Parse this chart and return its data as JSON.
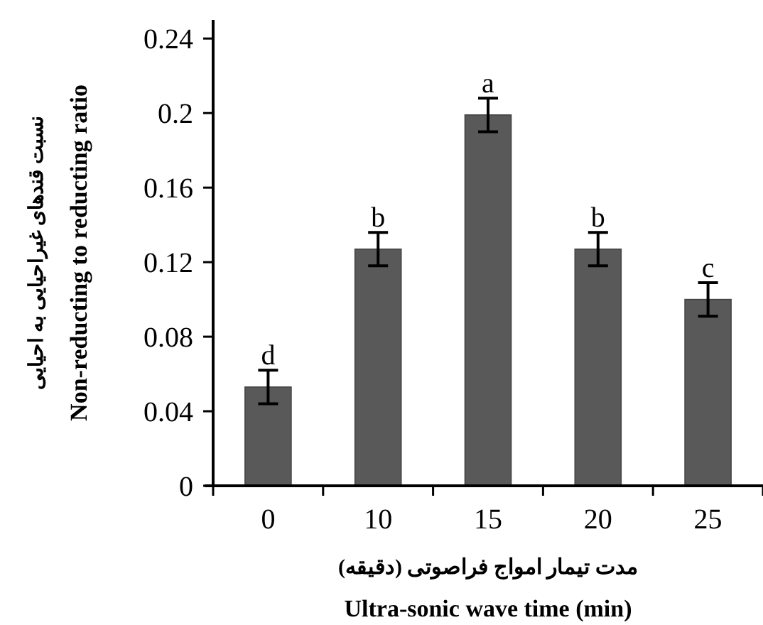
{
  "chart_data": {
    "type": "bar",
    "xlabel": "مدت تیمار امواج فراصوتی (دقیقه)\nUltra-sonic wave time (min)",
    "ylabel": "نسبت قندهای غیراحیایی به احیایی\nNon-reducting to reducting ratio",
    "categories": [
      "0",
      "10",
      "15",
      "20",
      "25"
    ],
    "values": [
      0.053,
      0.127,
      0.199,
      0.127,
      0.1
    ],
    "errors": [
      0.009,
      0.009,
      0.009,
      0.009,
      0.009
    ],
    "color": "#595959",
    "ylim": [
      0,
      0.25
    ],
    "yticks": [
      0,
      0.04,
      0.08,
      0.12,
      0.16,
      0.2,
      0.24
    ],
    "grid": false,
    "annotations": [
      {
        "text": "d",
        "x": "0",
        "y": 0.062
      },
      {
        "text": "b",
        "x": "10",
        "y": 0.136
      },
      {
        "text": "a",
        "x": "15",
        "y": 0.208
      },
      {
        "text": "b",
        "x": "20",
        "y": 0.136
      },
      {
        "text": "c",
        "x": "25",
        "y": 0.109
      }
    ]
  }
}
